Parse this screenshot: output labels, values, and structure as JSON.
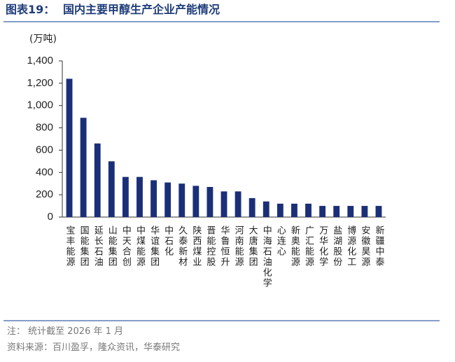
{
  "chart_data": {
    "type": "bar",
    "title_label": "图表19：",
    "title": "国内主要甲醇生产企业产能情况",
    "y_label": "(万吨)",
    "categories": [
      "宝丰能源",
      "国能集团",
      "延长石油",
      "山能集团",
      "中天合创",
      "中煤能源",
      "华谊集团",
      "中石化",
      "久泰新材",
      "陕西煤业",
      "晋能控股",
      "华鲁恒升",
      "河南能源",
      "大唐集团",
      "中海石油化学",
      "心连心",
      "新奥能源",
      "广汇能源",
      "万华化学",
      "盐湖股份",
      "博源化工",
      "安徽昊源",
      "新疆中泰"
    ],
    "values": [
      1240,
      890,
      660,
      500,
      360,
      360,
      330,
      310,
      300,
      280,
      270,
      230,
      230,
      170,
      140,
      120,
      120,
      120,
      100,
      100,
      100,
      100,
      100
    ],
    "color": "#1b2f78",
    "ylim": [
      0,
      1400
    ],
    "yticks": [
      0,
      200,
      400,
      600,
      800,
      {
        "value": 1000,
        "label": "1,000"
      },
      {
        "value": 1200,
        "label": "1,200"
      },
      {
        "value": 1400,
        "label": "1,400"
      }
    ],
    "grid": false,
    "note": "注：  统计截至 2026 年 1 月",
    "source": "资料来源：百川盈孚，隆众资讯，华泰研究"
  }
}
